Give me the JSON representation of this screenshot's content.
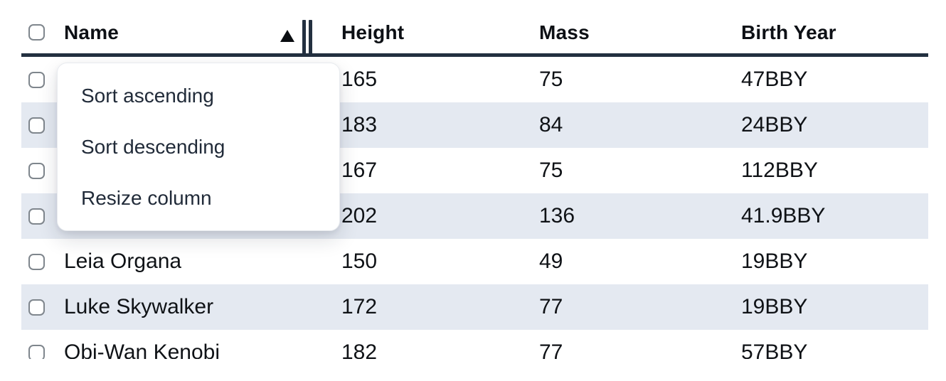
{
  "table": {
    "columns": [
      {
        "label": "Name"
      },
      {
        "label": "Height"
      },
      {
        "label": "Mass"
      },
      {
        "label": "Birth Year"
      }
    ],
    "sort": {
      "column": "Name",
      "direction": "ascending"
    },
    "rows": [
      {
        "name": "",
        "height": "165",
        "mass": "75",
        "birth_year": "47BBY"
      },
      {
        "name": "",
        "height": "183",
        "mass": "84",
        "birth_year": "24BBY"
      },
      {
        "name": "",
        "height": "167",
        "mass": "75",
        "birth_year": "112BBY"
      },
      {
        "name": "",
        "height": "202",
        "mass": "136",
        "birth_year": "41.9BBY"
      },
      {
        "name": "Leia Organa",
        "height": "150",
        "mass": "49",
        "birth_year": "19BBY"
      },
      {
        "name": "Luke Skywalker",
        "height": "172",
        "mass": "77",
        "birth_year": "19BBY"
      },
      {
        "name": "Obi-Wan Kenobi",
        "height": "182",
        "mass": "77",
        "birth_year": "57BBY"
      }
    ]
  },
  "context_menu": {
    "items": [
      {
        "label": "Sort ascending"
      },
      {
        "label": "Sort descending"
      },
      {
        "label": "Resize column"
      }
    ]
  },
  "colors": {
    "header_border": "#233040",
    "row_stripe": "#e4e9f1",
    "text": "#0f1216",
    "checkbox_border": "#7f868d"
  }
}
